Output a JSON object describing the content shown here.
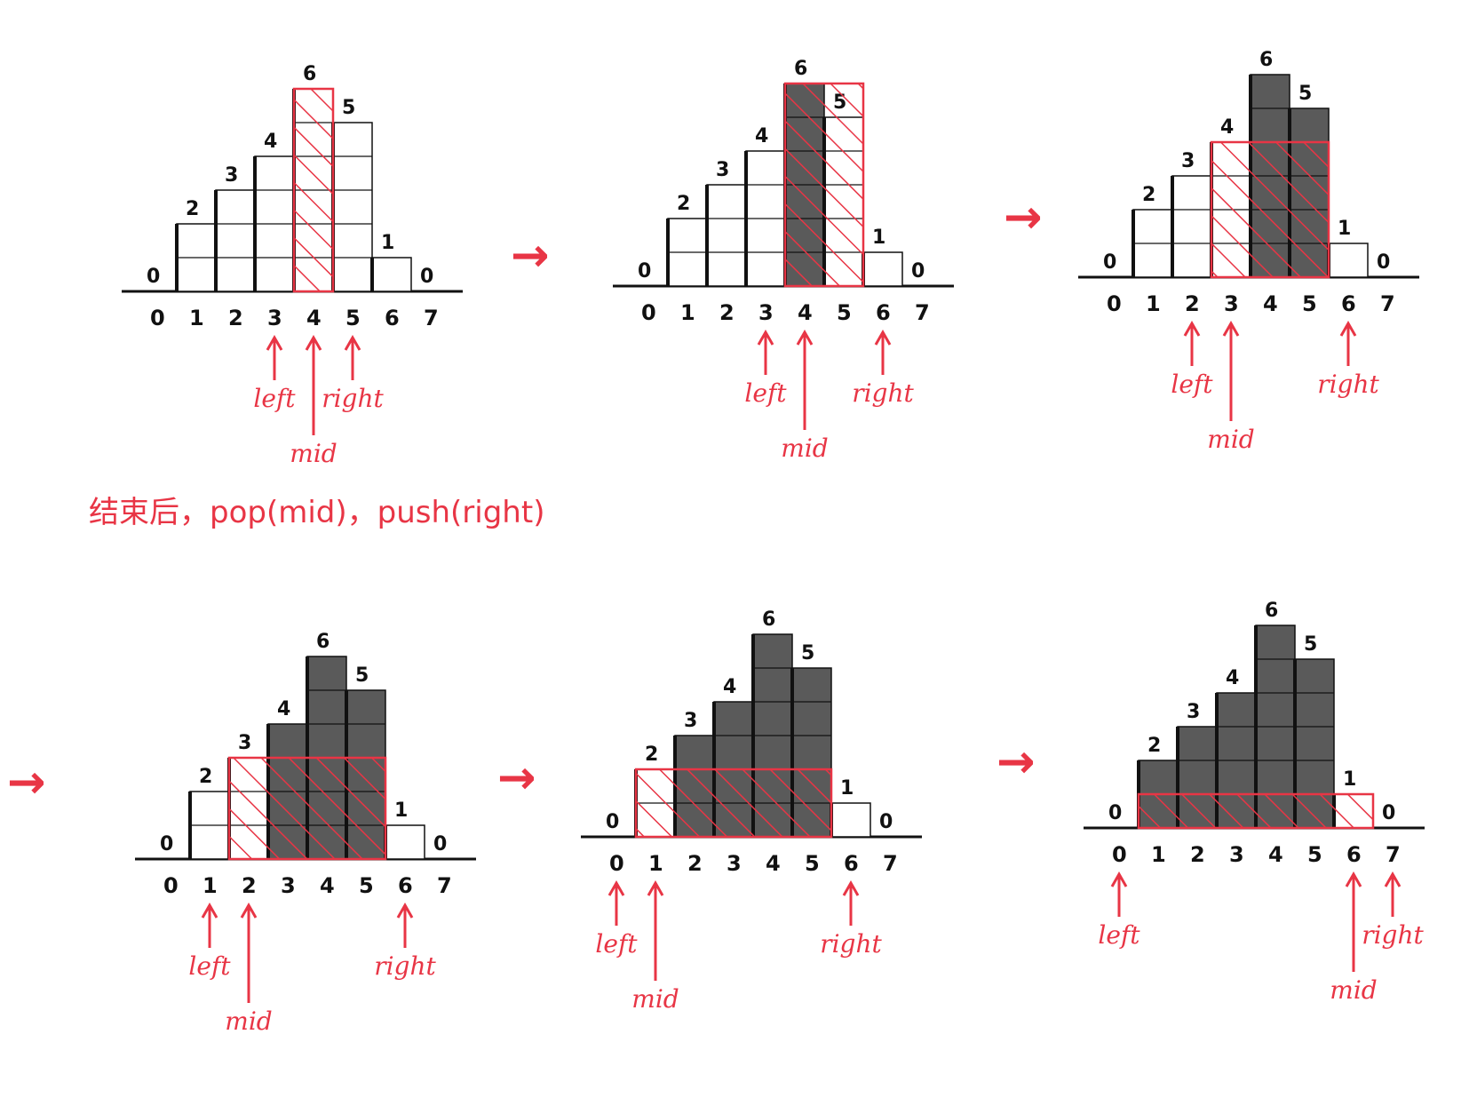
{
  "colors": {
    "ink": "#111111",
    "accent": "#e83545",
    "filled": "#5a5a5a",
    "background": "#ffffff"
  },
  "heights": [
    0,
    2,
    3,
    4,
    6,
    5,
    1,
    0
  ],
  "indices": [
    "0",
    "1",
    "2",
    "3",
    "4",
    "5",
    "6",
    "7"
  ],
  "pointer_labels": {
    "left": "left",
    "mid": "mid",
    "right": "right"
  },
  "note": "结束后，pop(mid)，push(right)",
  "arrow_glyph": "→",
  "steps": [
    {
      "left": 3,
      "mid": 4,
      "right": 5,
      "span": [
        4,
        4
      ],
      "filled": []
    },
    {
      "left": 3,
      "mid": 4,
      "right": 6,
      "span": [
        4,
        5
      ],
      "filled": [
        4
      ]
    },
    {
      "left": 2,
      "mid": 3,
      "right": 6,
      "span": [
        3,
        5
      ],
      "filled": [
        4,
        5
      ]
    },
    {
      "left": 1,
      "mid": 2,
      "right": 6,
      "span": [
        2,
        5
      ],
      "filled": [
        3,
        4,
        5
      ]
    },
    {
      "left": 0,
      "mid": 1,
      "right": 6,
      "span": [
        1,
        5
      ],
      "filled": [
        2,
        3,
        4,
        5
      ]
    },
    {
      "left": 0,
      "mid": 6,
      "right": 7,
      "span": [
        1,
        6
      ],
      "filled": [
        1,
        2,
        3,
        4,
        5
      ]
    }
  ]
}
